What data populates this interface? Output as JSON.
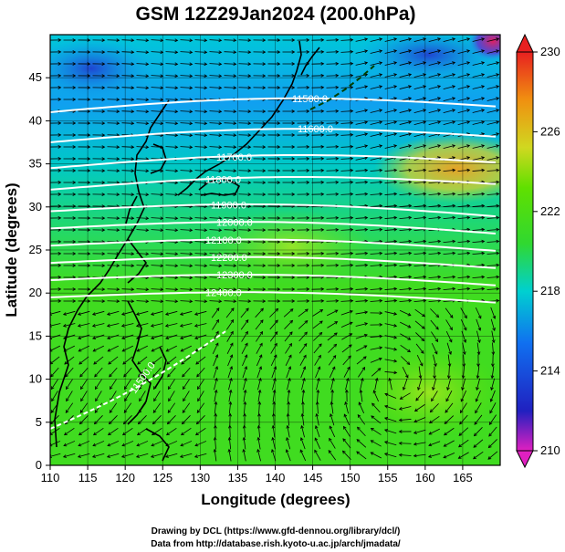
{
  "title": "GSM 12Z29Jan2024 (200.0hPa)",
  "xlabel": "Longitude (degrees)",
  "ylabel": "Latitude  (degrees)",
  "x_ticks": [
    "110",
    "115",
    "120",
    "125",
    "130",
    "135",
    "140",
    "145",
    "150",
    "155",
    "160",
    "165"
  ],
  "y_ticks": [
    "0",
    "5",
    "10",
    "15",
    "20",
    "25",
    "30",
    "35",
    "40",
    "45"
  ],
  "colorbar": {
    "ticks": [
      "230",
      "226",
      "222",
      "218",
      "214",
      "210"
    ],
    "tick_values": [
      230,
      226,
      222,
      218,
      214,
      210
    ],
    "range": [
      210,
      230
    ],
    "colors": [
      "#e020c0",
      "#2020c0",
      "#1070f0",
      "#00d0d0",
      "#30d830",
      "#60e000",
      "#d0d820",
      "#f09010",
      "#e82020"
    ]
  },
  "contour_labels": [
    "11500.0",
    "11600.0",
    "11700.0",
    "11800.0",
    "11900.0",
    "12000.0",
    "12100.0",
    "12200.0",
    "12300.0",
    "12400.0",
    "11500.0"
  ],
  "credits": {
    "line1": "Drawing by DCL (https://www.gfd-dennou.org/library/dcl/)",
    "line2": "Data from http://database.rish.kyoto-u.ac.jp/arch/jmadata/"
  },
  "chart_data": {
    "type": "map",
    "region": {
      "lon": [
        110,
        170
      ],
      "lat": [
        0,
        50
      ]
    },
    "grid": true,
    "fields": [
      "temperature shading (colorbar 210-230)",
      "geopotential height contours",
      "wind streamlines"
    ],
    "contours": [
      {
        "label": "11500.0",
        "lat_at_110": 41
      },
      {
        "label": "11600.0",
        "lat_at_110": 37.5
      },
      {
        "label": "11700.0",
        "lat_at_110": 34.5
      },
      {
        "label": "11800.0",
        "lat_at_110": 32
      },
      {
        "label": "11900.0",
        "lat_at_110": 29.5
      },
      {
        "label": "12000.0",
        "lat_at_110": 27.5
      },
      {
        "label": "12100.0",
        "lat_at_110": 25.5
      },
      {
        "label": "12200.0",
        "lat_at_110": 23.5
      },
      {
        "label": "12300.0",
        "lat_at_110": 21.5
      },
      {
        "label": "12400.0",
        "lat_at_110": 19.5
      }
    ]
  }
}
